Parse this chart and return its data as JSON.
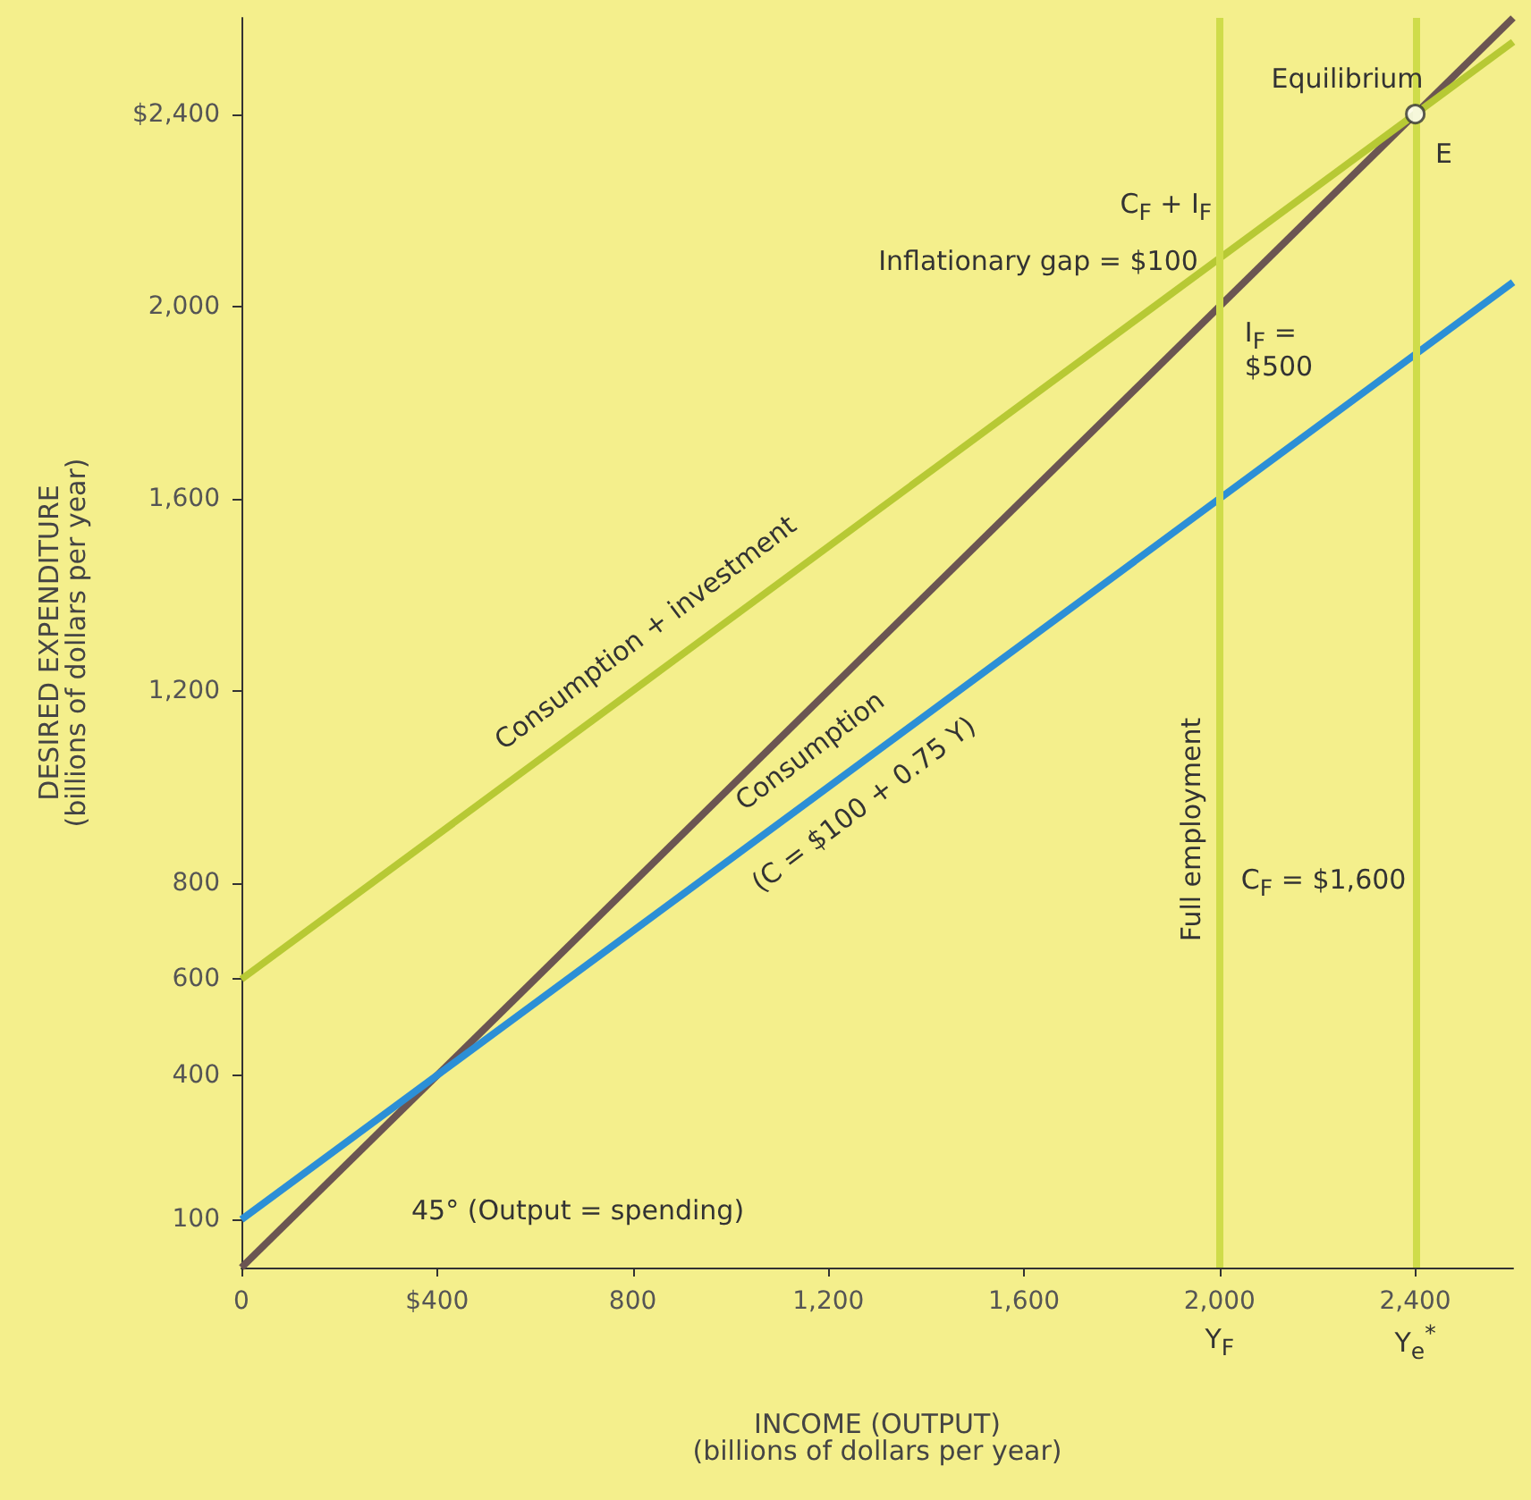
{
  "chart_data": {
    "type": "line",
    "xlabel": "INCOME (OUTPUT)\n(billions of dollars per year)",
    "ylabel": "DESIRED EXPENDITURE\n(billions of dollars per year)",
    "xlim": [
      0,
      2600
    ],
    "ylim": [
      0,
      2600
    ],
    "xticks": [
      {
        "value": 0,
        "label": "0"
      },
      {
        "value": 400,
        "label": "$400"
      },
      800,
      {
        "value": 1200,
        "label": "1,200"
      },
      {
        "value": 1600,
        "label": "1,600"
      },
      {
        "value": 2000,
        "label": "2,000"
      },
      {
        "value": 2400,
        "label": "2,400"
      }
    ],
    "yticks": [
      100,
      400,
      600,
      800,
      {
        "value": 1200,
        "label": "1,200"
      },
      {
        "value": 1600,
        "label": "1,600"
      },
      {
        "value": 2000,
        "label": "2,000"
      },
      {
        "value": 2400,
        "label": "$2,400"
      }
    ],
    "grid": false,
    "series": [
      {
        "color": "#6b5552",
        "x": [
          0,
          2600
        ],
        "values": [
          0,
          2600
        ]
      },
      {
        "color": "#2c8fd6",
        "x": [
          0,
          2600
        ],
        "values": [
          100,
          2050
        ]
      },
      {
        "color": "#b7c934",
        "x": [
          0,
          2600
        ],
        "values": [
          600,
          2550
        ]
      },
      {
        "type": "scatter",
        "color": "#ffffff",
        "marker": "circle",
        "x": [
          2400
        ],
        "values": [
          2400
        ]
      }
    ],
    "ref_lines": [
      {
        "axis": "x",
        "value": 2000,
        "label": "Full employment",
        "color": "#cfdc4a"
      },
      {
        "axis": "x",
        "value": 2400,
        "label": null,
        "color": "#cfdc4a"
      }
    ],
    "annotations": [
      {
        "text": "Equilibrium",
        "x": 2400,
        "y": 2400
      },
      {
        "text": "E",
        "x": 2400,
        "y": 2400
      },
      {
        "text": "C$_{F}$ + I$_{F}$",
        "x": 2000,
        "y": 2100
      },
      {
        "text": "Inflationary gap = $100",
        "x": 2000,
        "y": 2050
      },
      {
        "text": "I$_{F}$ =\n$500",
        "x": 2000,
        "y": 1850
      },
      {
        "text": "C$_{F}$ = $1,600",
        "x": 2000,
        "y": 800
      },
      {
        "text": "Consumption + investment",
        "x": 900,
        "y": 1275
      },
      {
        "text": "Consumption",
        "x": 1200,
        "y": 1000
      },
      {
        "text": "(C = $100 + 0.75 Y)",
        "x": 1200,
        "y": 1000
      },
      "45° (Output = spending)",
      {
        "text": "Y$_{F}$",
        "x": 2000,
        "y": 0
      },
      {
        "text": "Y$_{e}$$^{*}$",
        "x": 2400,
        "y": 0
      }
    ]
  }
}
